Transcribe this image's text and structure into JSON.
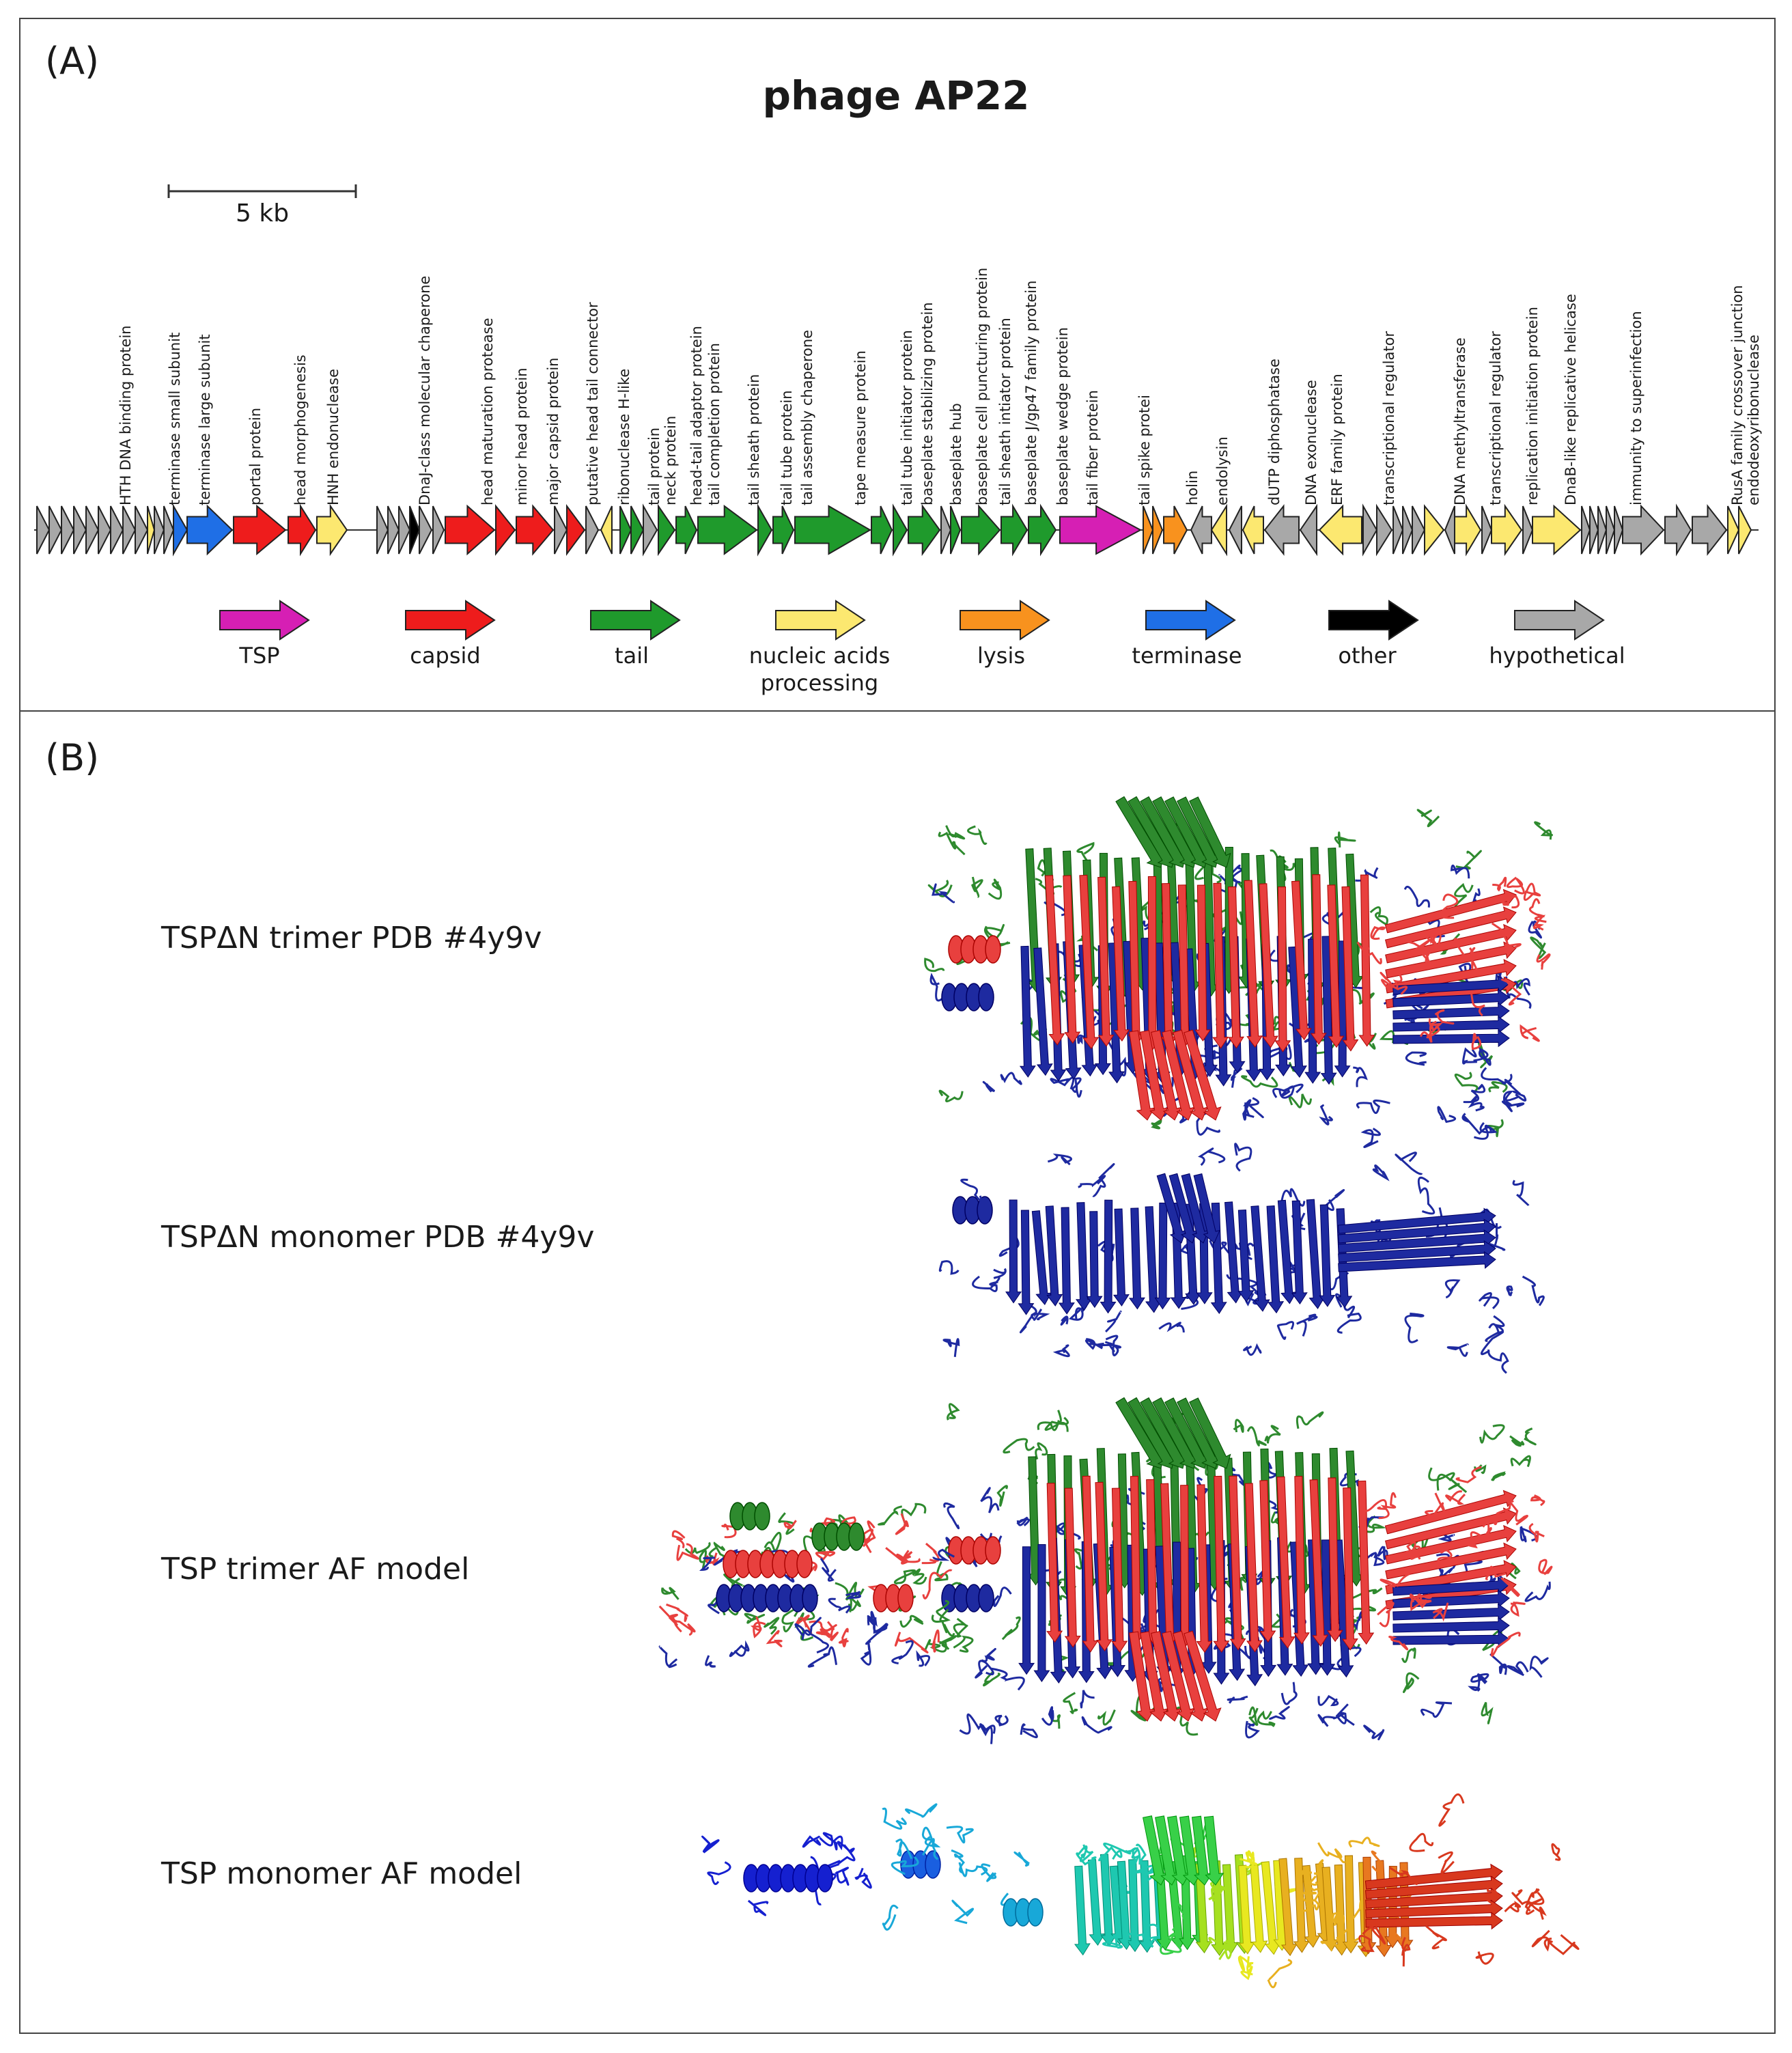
{
  "panels": {
    "a": "(A)",
    "b": "(B)"
  },
  "title": "phage AP22",
  "scale_bar": "5 kb",
  "gene_labels": [
    "HTH DNA binding protein",
    "terminase small subunit",
    "terminase large subunit",
    "portal protein",
    "head morphogenesis",
    "HNH endonuclease",
    "DnaJ-class molecular chaperone",
    "head maturation protease",
    "minor head protein",
    "major capsid protein",
    "putative head tail connector",
    "ribonuclease H-like",
    "tail protein",
    "neck protein",
    "head-tail adaptor protein",
    "tail completion protein",
    "tail sheath protein",
    "tail tube protein",
    "tail assembly chaperone",
    "tape measure protein",
    "tail tube initiator protein",
    "baseplate stabilizing protein",
    "baseplate hub",
    "baseplate cell puncturing protein",
    "tail sheath intiator protein",
    "baseplate J/gp47 family protein",
    "baseplate wedge protein",
    "tail fiber protein",
    "tail spike protei",
    "holin",
    "endolysin",
    "dUTP diphosphatase",
    "DNA exonuclease",
    "ERF family protein",
    "transcriptional regulator",
    "DNA methyltransferase",
    "transcriptional regulator",
    "replication initiation protein",
    "DnaB-like replicative helicase",
    "immunity to superinfection",
    "RusA family crossover junction",
    "endodeoxyribonuclease"
  ],
  "legend": [
    {
      "label": "TSP",
      "color": "#d61fb4"
    },
    {
      "label": "capsid",
      "color": "#ee1c1c"
    },
    {
      "label": "tail",
      "color": "#1f9a2c"
    },
    {
      "label": "nucleic acids processing",
      "color": "#fce870"
    },
    {
      "label": "lysis",
      "color": "#f8921e"
    },
    {
      "label": "terminase",
      "color": "#1f6fe6"
    },
    {
      "label": "other",
      "color": "#000000"
    },
    {
      "label": "hypothetical",
      "color": "#a8a8a8"
    }
  ],
  "structures": [
    "TSPΔN trimer PDB #4y9v",
    "TSPΔN monomer PDB #4y9v",
    "TSP trimer AF model",
    "TSP monomer AF model"
  ]
}
